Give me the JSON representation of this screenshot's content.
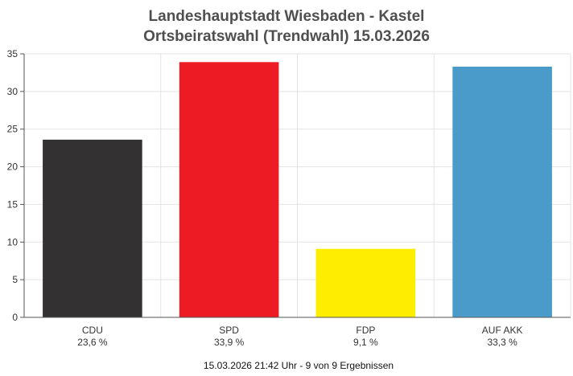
{
  "chart_data": {
    "type": "bar",
    "title": "Landeshauptstadt Wiesbaden - Kastel",
    "subtitle": "Ortsbeiratswahl (Trendwahl) 15.03.2026",
    "categories": [
      "CDU",
      "SPD",
      "FDP",
      "AUF AKK"
    ],
    "values": [
      23.6,
      33.9,
      9.1,
      33.3
    ],
    "value_labels": [
      "23,6 %",
      "33,9 %",
      "9,1 %",
      "33,3 %"
    ],
    "colors": [
      "#333132",
      "#ed1c24",
      "#ffed00",
      "#4a9bc9"
    ],
    "ylim": [
      0,
      35
    ],
    "yticks": [
      0,
      5,
      10,
      15,
      20,
      25,
      30,
      35
    ],
    "grid": true,
    "xlabel": "",
    "ylabel": ""
  },
  "footer": "15.03.2026 21:42 Uhr - 9 von 9 Ergebnissen"
}
